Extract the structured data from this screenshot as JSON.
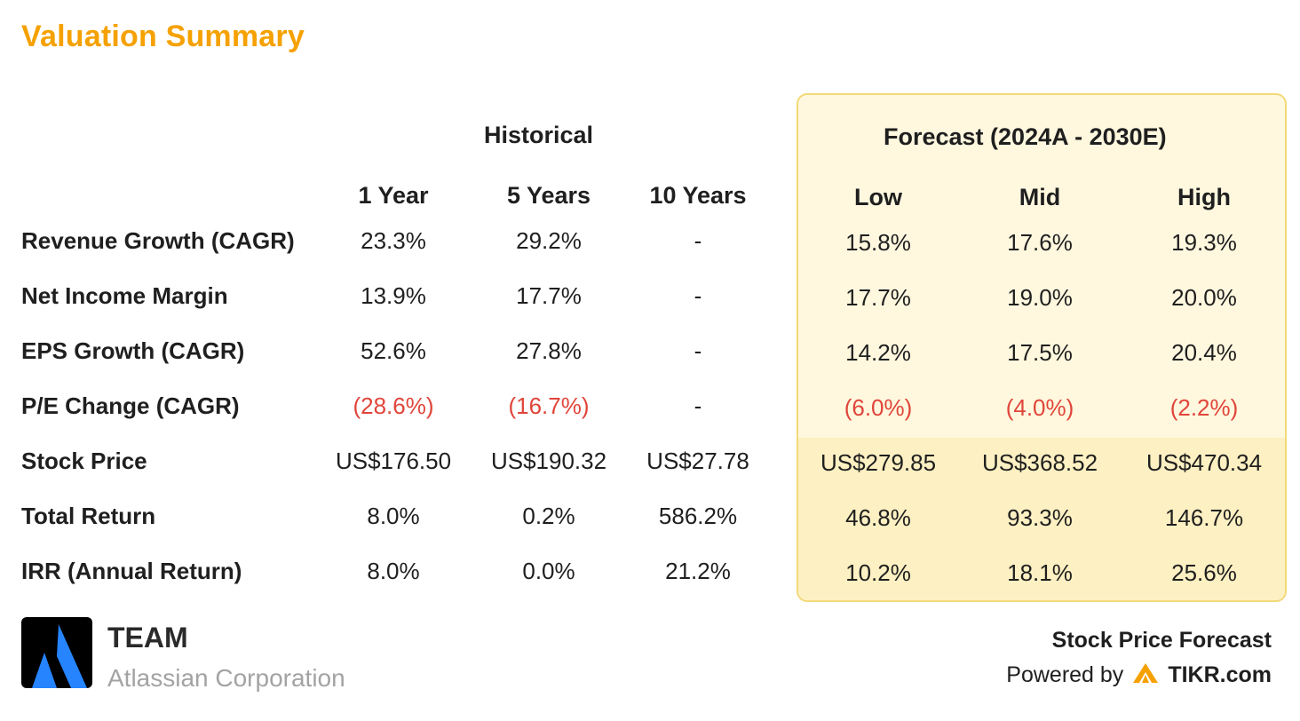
{
  "title": "Valuation Summary",
  "historical_header": "Historical",
  "forecast_header": "Forecast (2024A - 2030E)",
  "historical_columns": [
    "1 Year",
    "5 Years",
    "10 Years"
  ],
  "forecast_columns": [
    "Low",
    "Mid",
    "High"
  ],
  "rows": [
    {
      "label": "Revenue Growth (CAGR)",
      "historical": [
        "23.3%",
        "29.2%",
        "-"
      ],
      "forecast": [
        "15.8%",
        "17.6%",
        "19.3%"
      ]
    },
    {
      "label": "Net Income Margin",
      "historical": [
        "13.9%",
        "17.7%",
        "-"
      ],
      "forecast": [
        "17.7%",
        "19.0%",
        "20.0%"
      ]
    },
    {
      "label": "EPS Growth (CAGR)",
      "historical": [
        "52.6%",
        "27.8%",
        "-"
      ],
      "forecast": [
        "14.2%",
        "17.5%",
        "20.4%"
      ]
    },
    {
      "label": "P/E Change (CAGR)",
      "historical": [
        "(28.6%)",
        "(16.7%)",
        "-"
      ],
      "forecast": [
        "(6.0%)",
        "(4.0%)",
        "(2.2%)"
      ]
    },
    {
      "label": "Stock Price",
      "historical": [
        "US$176.50",
        "US$190.32",
        "US$27.78"
      ],
      "forecast": [
        "US$279.85",
        "US$368.52",
        "US$470.34"
      ]
    },
    {
      "label": "Total Return",
      "historical": [
        "8.0%",
        "0.2%",
        "586.2%"
      ],
      "forecast": [
        "46.8%",
        "93.3%",
        "146.7%"
      ]
    },
    {
      "label": "IRR (Annual Return)",
      "historical": [
        "8.0%",
        "0.0%",
        "21.2%"
      ],
      "forecast": [
        "10.2%",
        "18.1%",
        "25.6%"
      ]
    }
  ],
  "company": {
    "ticker": "TEAM",
    "name": "Atlassian Corporation",
    "logo_icon": "atlassian-logo-icon"
  },
  "footer": {
    "stock_price_forecast": "Stock Price Forecast",
    "powered_by": "Powered by",
    "brand": "TIKR.com",
    "brand_icon": "tikr-logo-icon"
  },
  "colors": {
    "title": "#f5a100",
    "negative": "#e0453a",
    "forecast_bg": "#fff8df",
    "forecast_border": "#f2d978",
    "forecast_lower_bg": "#fdf0c2",
    "atlassian_blue": "#2684ff",
    "tikr_orange": "#f5a100"
  }
}
